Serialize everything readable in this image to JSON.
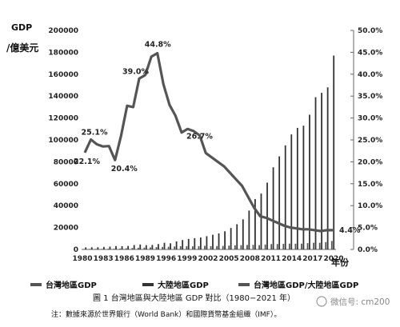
{
  "chart_data": {
    "type": "bar",
    "y_left_label": "GDP",
    "y_left_unit": "/億美元",
    "x_label": "年份",
    "y_left_lim": [
      0,
      200000
    ],
    "y_left_ticks": [
      "0",
      "20000",
      "40000",
      "60000",
      "80000",
      "100000",
      "120000",
      "140000",
      "160000",
      "180000",
      "200000"
    ],
    "y_right_lim": [
      0,
      50
    ],
    "y_right_ticks": [
      "0.0%",
      "5.0%",
      "10.0%",
      "15.0%",
      "20.0%",
      "25.0%",
      "30.0%",
      "35.0%",
      "40.0%",
      "45.0%",
      "50.0%"
    ],
    "x_tick_labels": [
      "1980",
      "1983",
      "1986",
      "1989",
      "1996",
      "1999",
      "2002",
      "2005",
      "2008",
      "2011",
      "2014",
      "2017",
      "2020"
    ],
    "years": [
      1980,
      1981,
      1982,
      1983,
      1984,
      1985,
      1986,
      1987,
      1988,
      1989,
      1990,
      1991,
      1992,
      1993,
      1994,
      1995,
      1996,
      1997,
      1998,
      1999,
      2000,
      2001,
      2002,
      2003,
      2004,
      2005,
      2006,
      2007,
      2008,
      2009,
      2010,
      2011,
      2012,
      2013,
      2014,
      2015,
      2016,
      2017,
      2018,
      2019,
      2020,
      2021
    ],
    "series": [
      {
        "name": "台灣地區GDP",
        "type": "bar",
        "color": "#555555",
        "values": [
          420,
          490,
          490,
          530,
          600,
          640,
          780,
          1050,
          1260,
          1530,
          1660,
          1850,
          2200,
          2300,
          2450,
          2750,
          2900,
          3000,
          2800,
          3000,
          3300,
          3000,
          3100,
          3200,
          3500,
          3750,
          3900,
          4100,
          4200,
          3900,
          4500,
          4850,
          4950,
          5100,
          5300,
          5250,
          5300,
          5750,
          6100,
          6100,
          6700,
          7750
        ]
      },
      {
        "name": "大陸地區GDP",
        "type": "bar",
        "color": "#333333",
        "values": [
          1900,
          2000,
          2050,
          2300,
          2600,
          3100,
          3000,
          3200,
          4000,
          4500,
          3900,
          4100,
          4900,
          6100,
          5600,
          7300,
          8600,
          9600,
          10300,
          10900,
          12100,
          13400,
          14700,
          16600,
          19600,
          23000,
          27500,
          35500,
          46000,
          51000,
          61000,
          75000,
          85000,
          95000,
          105000,
          111000,
          113000,
          123000,
          139000,
          143000,
          148000,
          177000
        ]
      },
      {
        "name": "台灣地區GDP/大陸地區GDP",
        "type": "line",
        "axis": "right",
        "color": "#555555",
        "values": [
          22.1,
          25.1,
          24.0,
          23.5,
          23.6,
          20.4,
          26.0,
          32.8,
          32.5,
          39.0,
          39.8,
          44.0,
          44.8,
          37.7,
          33.0,
          30.5,
          26.7,
          27.5,
          27.0,
          26.0,
          22.0,
          21.0,
          20.0,
          19.0,
          17.5,
          16.0,
          14.5,
          12.0,
          9.5,
          7.6,
          7.2,
          6.6,
          6.0,
          5.4,
          5.0,
          4.8,
          4.6,
          4.6,
          4.4,
          4.2,
          4.4,
          4.4
        ]
      }
    ],
    "annotations": [
      {
        "text": "22.1%",
        "year": 1980,
        "value": 22.1
      },
      {
        "text": "25.1%",
        "year": 1981,
        "value": 25.1
      },
      {
        "text": "20.4%",
        "year": 1985,
        "value": 20.4
      },
      {
        "text": "39.0%",
        "year": 1989,
        "value": 39.0
      },
      {
        "text": "44.8%",
        "year": 1992,
        "value": 44.8
      },
      {
        "text": "26.7%",
        "year": 1996,
        "value": 26.7
      },
      {
        "text": "4.4%",
        "year": 2021,
        "value": 4.4
      }
    ],
    "legend": [
      "台灣地區GDP",
      "大陸地區GDP",
      "台灣地區GDP/大陸地區GDP"
    ],
    "legend_position": "bottom",
    "title": "圖 1 台灣地區與大陸地區 GDP 對比（1980−2021 年）",
    "note": "注：數據來源於世界銀行（World Bank）和國際貨幣基金組織（IMF）。",
    "watermark": "微信号: cm200",
    "grid": false
  }
}
